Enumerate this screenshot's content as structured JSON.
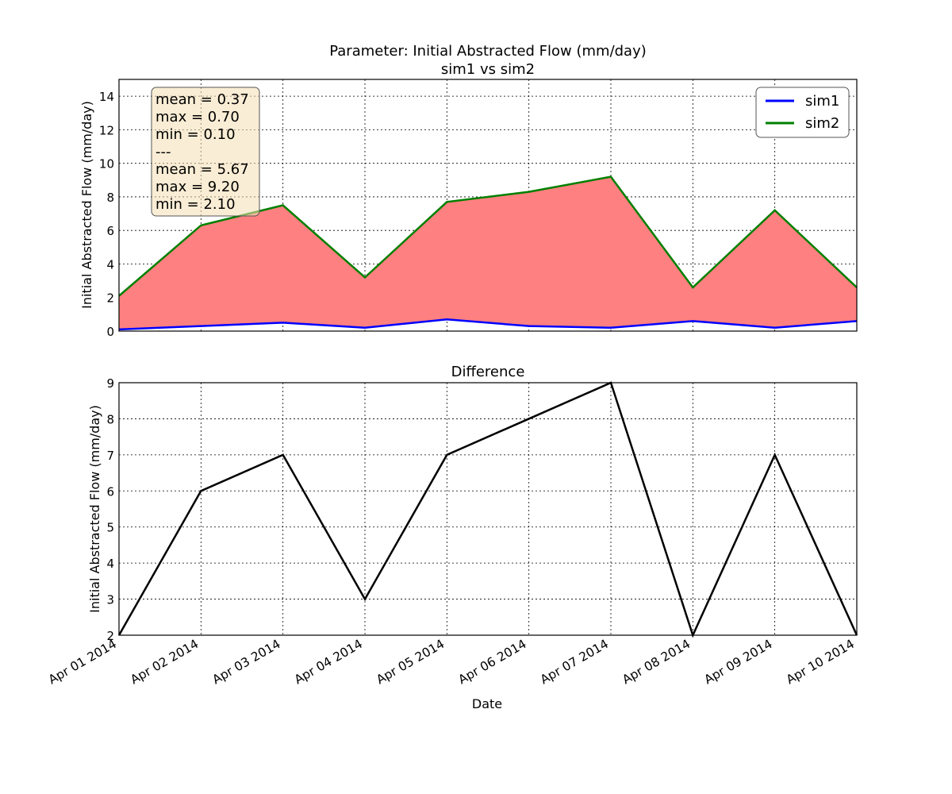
{
  "figure": {
    "title_line1": "Parameter: Initial Abstracted Flow (mm/day)",
    "title_line2": "sim1 vs sim2"
  },
  "stats_box": {
    "lines": [
      "mean = 0.37",
      "max = 0.70",
      "min = 0.10",
      "---",
      "mean = 5.67",
      "max = 9.20",
      "min = 2.10"
    ]
  },
  "colors": {
    "sim1": "#0000ff",
    "sim2": "#008000",
    "fill": "#ff8080",
    "difference": "#000000",
    "stats_box_bg": "#f5deb3"
  },
  "chart_data": [
    {
      "type": "line",
      "title": "",
      "xlabel": "",
      "ylabel": "Initial Abstracted Flow (mm/day)",
      "x": [
        "Apr 01 2014",
        "Apr 02 2014",
        "Apr 03 2014",
        "Apr 04 2014",
        "Apr 05 2014",
        "Apr 06 2014",
        "Apr 07 2014",
        "Apr 08 2014",
        "Apr 09 2014",
        "Apr 10 2014"
      ],
      "series": [
        {
          "name": "sim1",
          "values": [
            0.1,
            0.3,
            0.5,
            0.2,
            0.7,
            0.3,
            0.2,
            0.6,
            0.2,
            0.6
          ]
        },
        {
          "name": "sim2",
          "values": [
            2.1,
            6.3,
            7.5,
            3.2,
            7.7,
            8.3,
            9.2,
            2.6,
            7.2,
            2.6
          ]
        }
      ],
      "fill_between": [
        "sim1",
        "sim2"
      ],
      "ylim": [
        0,
        15
      ],
      "yticks": [
        0,
        2,
        4,
        6,
        8,
        10,
        12,
        14
      ],
      "grid": true,
      "legend": "top-right"
    },
    {
      "type": "line",
      "title": "Difference",
      "xlabel": "Date",
      "ylabel": "Initial Abstracted Flow (mm/day)",
      "x": [
        "Apr 01 2014",
        "Apr 02 2014",
        "Apr 03 2014",
        "Apr 04 2014",
        "Apr 05 2014",
        "Apr 06 2014",
        "Apr 07 2014",
        "Apr 08 2014",
        "Apr 09 2014",
        "Apr 10 2014"
      ],
      "series": [
        {
          "values": [
            2,
            6,
            7,
            3,
            7,
            8,
            9,
            2,
            7,
            2
          ]
        }
      ],
      "ylim": [
        2,
        9
      ],
      "yticks": [
        2,
        3,
        4,
        5,
        6,
        7,
        8,
        9
      ],
      "grid": true
    }
  ]
}
